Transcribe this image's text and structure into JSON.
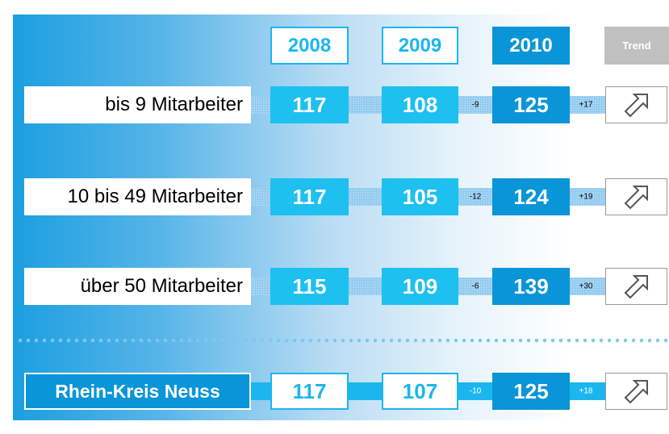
{
  "header": {
    "columns": [
      "2008",
      "2009",
      "2010",
      "Trend"
    ]
  },
  "rows": [
    {
      "label": "bis 9 Mitarbeiter",
      "values": [
        117,
        108,
        125
      ],
      "changes": [
        "-9",
        "+17"
      ]
    },
    {
      "label": "10 bis 49 Mitarbeiter",
      "values": [
        117,
        105,
        124
      ],
      "changes": [
        "-12",
        "+19"
      ]
    },
    {
      "label": "über 50 Mitarbeiter",
      "values": [
        115,
        109,
        139
      ],
      "changes": [
        "-6",
        "+30"
      ]
    },
    {
      "label": "Rhein-Kreis Neuss",
      "values": [
        117,
        107,
        125
      ],
      "changes": [
        "-10",
        "+18"
      ]
    }
  ]
}
